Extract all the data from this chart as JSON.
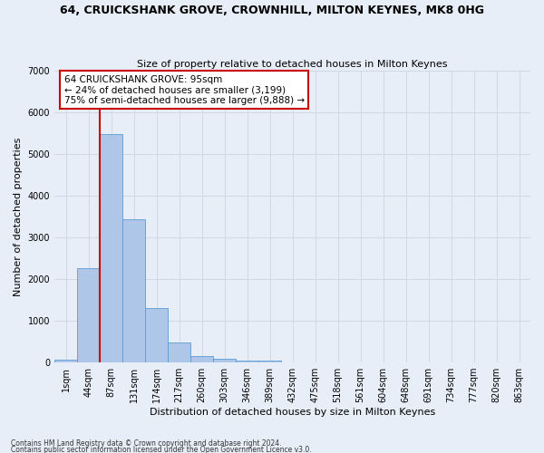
{
  "title": "64, CRUICKSHANK GROVE, CROWNHILL, MILTON KEYNES, MK8 0HG",
  "subtitle": "Size of property relative to detached houses in Milton Keynes",
  "xlabel": "Distribution of detached houses by size in Milton Keynes",
  "ylabel": "Number of detached properties",
  "categories": [
    "1sqm",
    "44sqm",
    "87sqm",
    "131sqm",
    "174sqm",
    "217sqm",
    "260sqm",
    "303sqm",
    "346sqm",
    "389sqm",
    "432sqm",
    "475sqm",
    "518sqm",
    "561sqm",
    "604sqm",
    "648sqm",
    "691sqm",
    "734sqm",
    "777sqm",
    "820sqm",
    "863sqm"
  ],
  "values": [
    75,
    2270,
    5480,
    3440,
    1310,
    470,
    160,
    95,
    55,
    35,
    0,
    0,
    0,
    0,
    0,
    0,
    0,
    0,
    0,
    0,
    0
  ],
  "bar_color": "#aec6e8",
  "bar_edge_color": "#5b9bd5",
  "vline_color": "#cc0000",
  "annotation_text": "64 CRUICKSHANK GROVE: 95sqm\n← 24% of detached houses are smaller (3,199)\n75% of semi-detached houses are larger (9,888) →",
  "annotation_box_color": "#ffffff",
  "annotation_box_edge_color": "#cc0000",
  "ylim": [
    0,
    7000
  ],
  "yticks": [
    0,
    1000,
    2000,
    3000,
    4000,
    5000,
    6000,
    7000
  ],
  "grid_color": "#d0d8e8",
  "bg_color": "#e8eef8",
  "footnote1": "Contains HM Land Registry data © Crown copyright and database right 2024.",
  "footnote2": "Contains public sector information licensed under the Open Government Licence v3.0."
}
